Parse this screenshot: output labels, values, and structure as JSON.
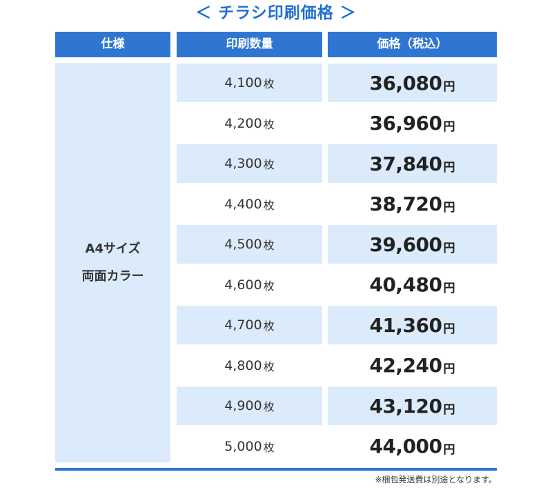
{
  "title": "＜ チラシ印刷価格 ＞",
  "headers": {
    "spec": "仕様",
    "quantity": "印刷数量",
    "price": "価格（税込）"
  },
  "spec": {
    "line1": "A4サイズ",
    "line2": "両面カラー"
  },
  "qty_unit": "枚",
  "price_unit": "円",
  "rows": [
    {
      "qty": "4,100",
      "price": "36,080"
    },
    {
      "qty": "4,200",
      "price": "36,960"
    },
    {
      "qty": "4,300",
      "price": "37,840"
    },
    {
      "qty": "4,400",
      "price": "38,720"
    },
    {
      "qty": "4,500",
      "price": "39,600"
    },
    {
      "qty": "4,600",
      "price": "40,480"
    },
    {
      "qty": "4,700",
      "price": "41,360"
    },
    {
      "qty": "4,800",
      "price": "42,240"
    },
    {
      "qty": "4,900",
      "price": "43,120"
    },
    {
      "qty": "5,000",
      "price": "44,000"
    }
  ],
  "note": "※梱包発送費は別途となります。",
  "colors": {
    "accent": "#2f76d2",
    "title": "#1f6fd1",
    "shade": "#dcebfb"
  }
}
